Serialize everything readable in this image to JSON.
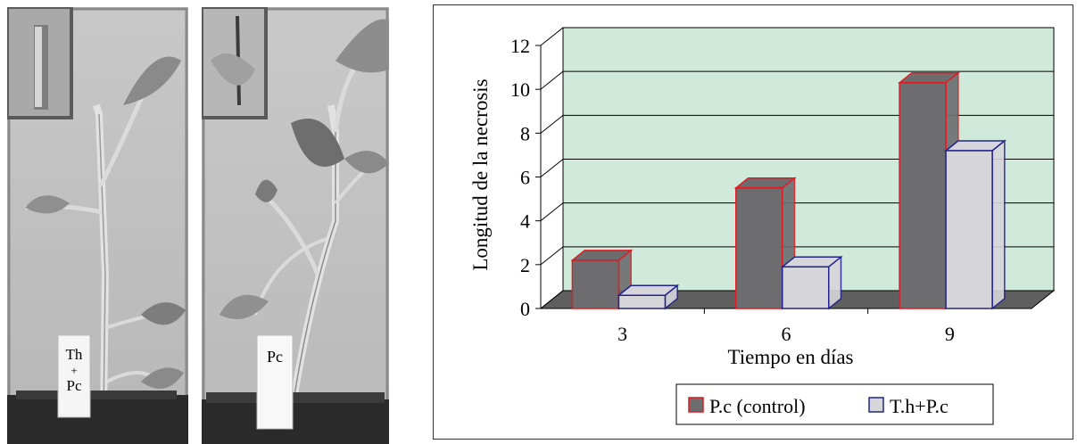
{
  "photos": [
    {
      "label_line1": "Th",
      "label_line2": "+",
      "label_line3": "Pc"
    },
    {
      "label_line1": "Pc"
    }
  ],
  "colors": {
    "series1_fill": "#6d6d6f",
    "series1_edge": "#e11b22",
    "series2_fill": "#d6d6da",
    "series2_edge": "#23238f",
    "wall": "#cfeada",
    "floor": "#5f5f5f"
  },
  "chart_data": {
    "type": "bar",
    "categories": [
      "3",
      "6",
      "9"
    ],
    "series": [
      {
        "name": "P.c (control)",
        "values": [
          2.2,
          5.5,
          10.3
        ]
      },
      {
        "name": "T.h+P.c",
        "values": [
          0.6,
          1.9,
          7.2
        ]
      }
    ],
    "xlabel": "Tiempo en días",
    "ylabel": "Longitud de la necrosis",
    "ylim": [
      0,
      12
    ],
    "yticks": [
      "0",
      "2",
      "4",
      "6",
      "8",
      "10",
      "12"
    ],
    "grid": true,
    "legend": "bottom",
    "projection": "3d"
  }
}
